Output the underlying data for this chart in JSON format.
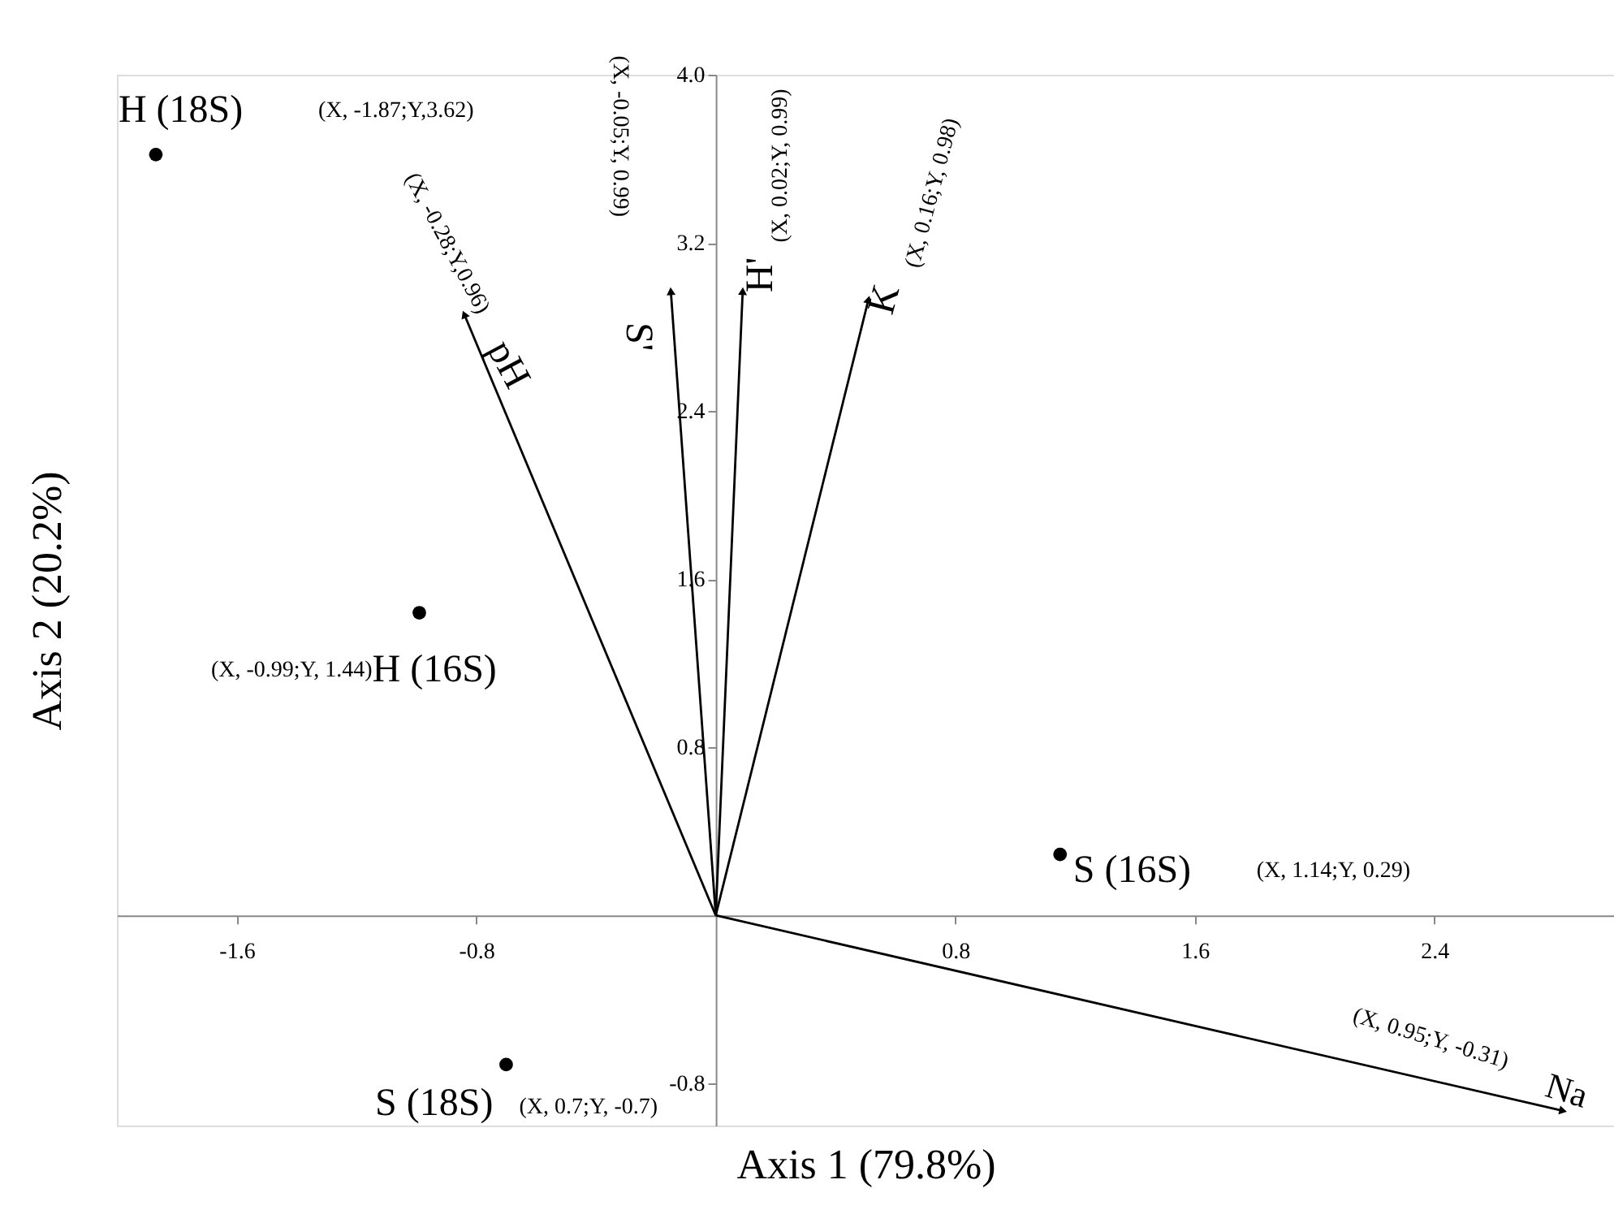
{
  "chart_data": {
    "type": "scatter",
    "xlabel": "Axis 1 (79.8%)",
    "ylabel": "Axis 2 (20.2%)",
    "xlim": [
      -2.0,
      3.0
    ],
    "ylim": [
      -1.0,
      4.0
    ],
    "xticks": [
      -1.6,
      -0.8,
      0.8,
      1.6,
      2.4
    ],
    "yticks": [
      -0.8,
      0.8,
      1.6,
      2.4,
      3.2,
      {
        "value": 4.0,
        "label": "4.0"
      }
    ],
    "series": [
      {
        "name": "H (18S)",
        "marker": "circle",
        "color": "#000000",
        "x": [
          -1.87
        ],
        "values": [
          3.62
        ]
      },
      {
        "name": "H (16S)",
        "marker": "circle",
        "color": "#000000",
        "x": [
          -0.99
        ],
        "values": [
          1.44
        ]
      },
      {
        "name": "S (16S)",
        "marker": "circle",
        "color": "#000000",
        "x": [
          1.15
        ],
        "values": [
          0.29
        ]
      },
      {
        "name": "S (18S)",
        "marker": "circle",
        "color": "#000000",
        "x": [
          -0.7
        ],
        "values": [
          -0.71
        ]
      },
      {
        "name": "pH",
        "type": "line",
        "color": "#000000",
        "x": [
          0,
          -0.84
        ],
        "values": [
          0,
          2.86
        ]
      },
      {
        "name": "S'",
        "type": "line",
        "color": "#000000",
        "x": [
          0,
          -0.15
        ],
        "values": [
          0,
          2.97
        ]
      },
      {
        "name": "H'",
        "type": "line",
        "color": "#000000",
        "x": [
          0,
          0.09
        ],
        "values": [
          0,
          2.97
        ]
      },
      {
        "name": "K",
        "type": "line",
        "color": "#000000",
        "x": [
          0,
          0.51
        ],
        "values": [
          0,
          2.93
        ]
      },
      {
        "name": "Na",
        "type": "line",
        "color": "#000000",
        "x": [
          0,
          2.83
        ],
        "values": [
          0,
          -0.93
        ]
      }
    ],
    "annotations": [
      "(X, -1.87;Y,3.62)",
      "(X, -0.99;Y, 1.44)",
      "(X, 1.14;Y, 0.29)",
      "(X, 0.7;Y, -0.7)",
      "(X, -0.28;Y,0.96)",
      "(X, -0.05;Y, 0.99)",
      "(X, 0.02;Y, 0.99)",
      "(X, 0.16;Y, 0.98)",
      "(X, 0.95;Y, -0.31)"
    ]
  }
}
